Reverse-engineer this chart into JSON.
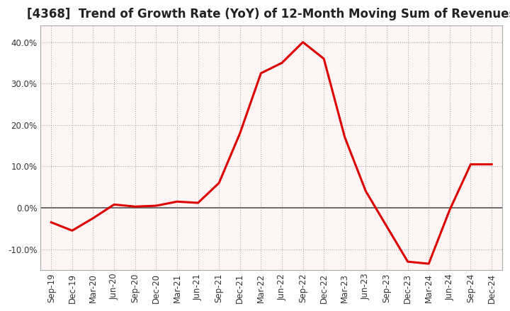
{
  "title": "[4368]  Trend of Growth Rate (YoY) of 12-Month Moving Sum of Revenues",
  "line_color": "#dd0000",
  "background_color": "#ffffff",
  "plot_bg_color": "#fff5f5",
  "grid_color": "#999999",
  "zero_line_color": "#555555",
  "x_labels": [
    "Sep-19",
    "Dec-19",
    "Mar-20",
    "Jun-20",
    "Sep-20",
    "Dec-20",
    "Mar-21",
    "Jun-21",
    "Sep-21",
    "Dec-21",
    "Mar-22",
    "Jun-22",
    "Sep-22",
    "Dec-22",
    "Mar-23",
    "Jun-23",
    "Sep-23",
    "Dec-23",
    "Mar-24",
    "Jun-24",
    "Sep-24",
    "Dec-24"
  ],
  "x_values": [
    0,
    1,
    2,
    3,
    4,
    5,
    6,
    7,
    8,
    9,
    10,
    11,
    12,
    13,
    14,
    15,
    16,
    17,
    18,
    19,
    20,
    21
  ],
  "y_values": [
    -3.5,
    -5.5,
    -2.5,
    0.8,
    0.3,
    0.5,
    1.5,
    1.2,
    6.0,
    18.0,
    32.5,
    35.0,
    40.0,
    36.0,
    17.0,
    4.0,
    -4.5,
    -13.0,
    -13.5,
    -0.5,
    10.5,
    10.5
  ],
  "ylim": [
    -15,
    44
  ],
  "yticks": [
    -10,
    0,
    10,
    20,
    30,
    40
  ],
  "title_fontsize": 12,
  "tick_fontsize": 8.5,
  "line_width": 2.2
}
